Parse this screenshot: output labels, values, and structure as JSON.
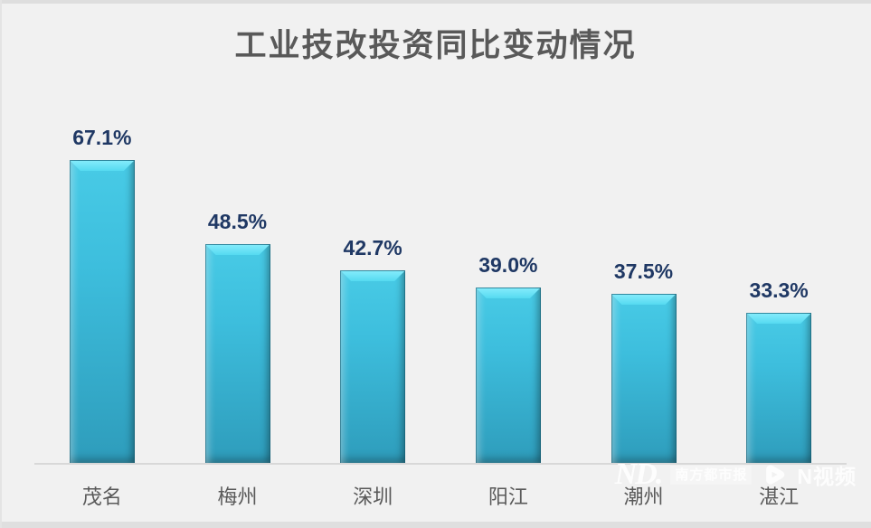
{
  "page": {
    "background": "#F1F1F1"
  },
  "chart_data": {
    "type": "bar",
    "title": "工业技改投资同比变动情况",
    "categories": [
      "茂名",
      "梅州",
      "深圳",
      "阳江",
      "潮州",
      "湛江"
    ],
    "values": [
      67.1,
      48.5,
      42.7,
      39.0,
      37.5,
      33.3
    ],
    "value_labels": [
      "67.1%",
      "48.5%",
      "42.7%",
      "39.0%",
      "37.5%",
      "33.3%"
    ],
    "xlabel": "",
    "ylabel": "",
    "ylim": [
      0,
      70
    ],
    "grid": false,
    "legend": "none",
    "colors": {
      "bar_face_top": "#48CBE6",
      "bar_face_bottom": "#2E9CBB",
      "bar_bevel_highlight": "#6CE4F8",
      "bar_border": "#12617A",
      "value_label": "#1F3864",
      "title": "#595959",
      "category_label": "#595959",
      "axis_line": "#D8D8D8",
      "background": "#F1F1F1"
    }
  },
  "watermark": {
    "logo_text": "ND.",
    "badge_text": "南方都市报",
    "play_icon": "play-icon",
    "brand_text": "N视频"
  }
}
